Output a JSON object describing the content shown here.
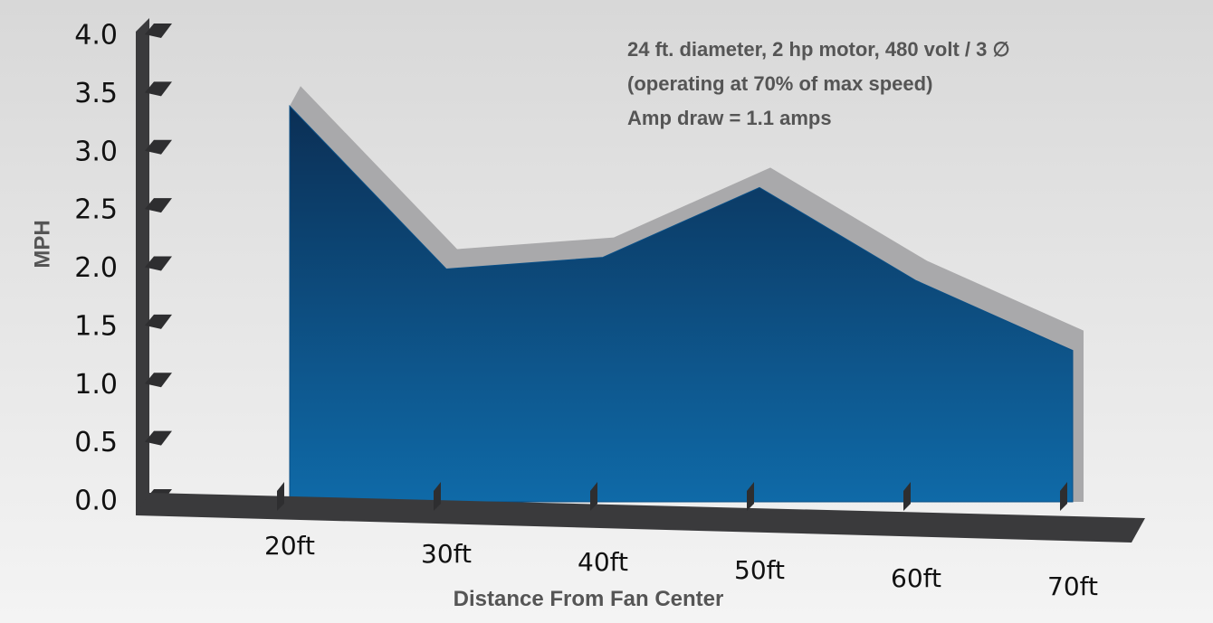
{
  "chart_data": {
    "type": "area",
    "annotations": [
      "24 ft. diameter, 2 hp motor, 480 volt / 3 ∅",
      "(operating at 70% of max speed)",
      "Amp draw = 1.1 amps"
    ],
    "x_label": "Distance From Fan Center",
    "y_label": "MPH",
    "categories": [
      "20ft",
      "30ft",
      "40ft",
      "50ft",
      "60ft",
      "70ft"
    ],
    "values": [
      3.4,
      2.0,
      2.1,
      2.7,
      1.9,
      1.3
    ],
    "color": "#0a4f86",
    "ylim": [
      0,
      4
    ],
    "yticks": [
      {
        "value": 0,
        "label": "0.0"
      },
      {
        "value": 0.5,
        "label": "0.5"
      },
      {
        "value": 1,
        "label": "1.0"
      },
      {
        "value": 1.5,
        "label": "1.5"
      },
      {
        "value": 2,
        "label": "2.0"
      },
      {
        "value": 2.5,
        "label": "2.5"
      },
      {
        "value": 3,
        "label": "3.0"
      },
      {
        "value": 3.5,
        "label": "3.5"
      },
      {
        "value": 4,
        "label": "4.0"
      }
    ]
  }
}
